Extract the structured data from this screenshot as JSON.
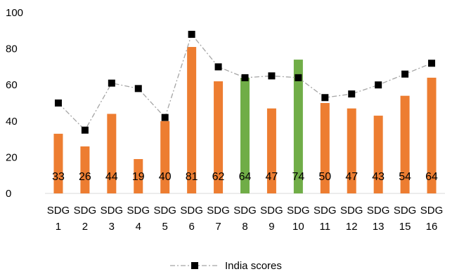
{
  "chart_data": {
    "type": "bar",
    "title": "",
    "xlabel": "",
    "ylabel": "",
    "ylim": [
      0,
      100
    ],
    "yticks": [
      0,
      20,
      40,
      60,
      80,
      100
    ],
    "grid": false,
    "legend_position": "bottom",
    "categories": [
      [
        "SDG",
        "1"
      ],
      [
        "SDG",
        "2"
      ],
      [
        "SDG",
        "3"
      ],
      [
        "SDG",
        "4"
      ],
      [
        "SDG",
        "5"
      ],
      [
        "SDG",
        "6"
      ],
      [
        "SDG",
        "7"
      ],
      [
        "SDG",
        "8"
      ],
      [
        "SDG",
        "9"
      ],
      [
        "SDG",
        "10"
      ],
      [
        "SDG",
        "11"
      ],
      [
        "SDG",
        "12"
      ],
      [
        "SDG",
        "13"
      ],
      [
        "SDG",
        "15"
      ],
      [
        "SDG",
        "16"
      ]
    ],
    "series": [
      {
        "type": "bar",
        "values": [
          33,
          26,
          44,
          19,
          40,
          81,
          62,
          64,
          47,
          74,
          50,
          47,
          43,
          54,
          64
        ],
        "data_labels": [
          "33",
          "26",
          "44",
          "19",
          "40",
          "81",
          "62",
          "64",
          "47",
          "74",
          "50",
          "47",
          "43",
          "54",
          "64"
        ],
        "colors": [
          "#ED7D31",
          "#ED7D31",
          "#ED7D31",
          "#ED7D31",
          "#ED7D31",
          "#ED7D31",
          "#ED7D31",
          "#70AD47",
          "#ED7D31",
          "#70AD47",
          "#ED7D31",
          "#ED7D31",
          "#ED7D31",
          "#ED7D31",
          "#ED7D31"
        ]
      },
      {
        "type": "line",
        "name": "India scores",
        "values": [
          50,
          35,
          61,
          58,
          42,
          88,
          70,
          64,
          65,
          64,
          53,
          55,
          60,
          66,
          72
        ],
        "color": "#A5A5A5",
        "marker_color": "#000000",
        "line_style": "dash-dot"
      }
    ]
  }
}
